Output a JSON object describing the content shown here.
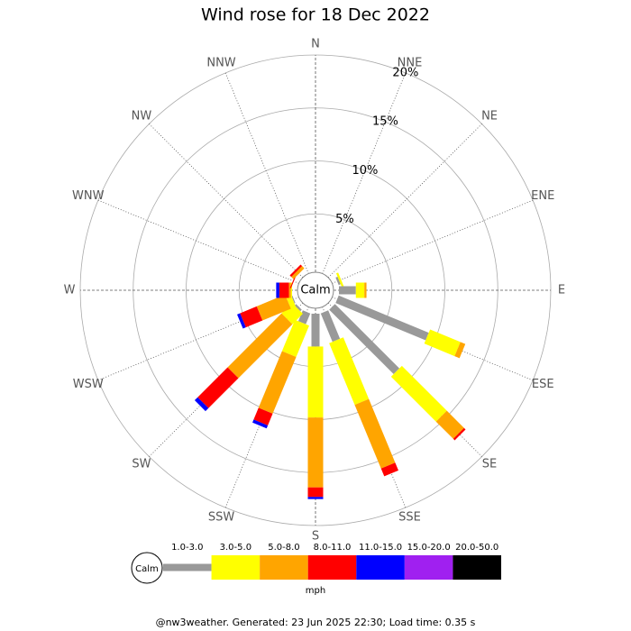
{
  "chart_data": {
    "type": "windrose",
    "title": "Wind rose for 18 Dec 2022",
    "categories": [
      "N",
      "NNE",
      "NE",
      "ENE",
      "E",
      "ESE",
      "SE",
      "SSE",
      "S",
      "SSW",
      "SW",
      "WSW",
      "W",
      "WNW",
      "NW",
      "NNW"
    ],
    "rlim": [
      0,
      20
    ],
    "rticks": [
      {
        "value": 5,
        "label": "5%"
      },
      {
        "value": 10,
        "label": "10%"
      },
      {
        "value": 15,
        "label": "15%"
      },
      {
        "value": 20,
        "label": "20%"
      }
    ],
    "calm_label": "Calm",
    "legend_unit": "mph",
    "series": [
      {
        "name": "1.0-3.0",
        "color": "#999999",
        "values": [
          0,
          0,
          0,
          0.2,
          1.6,
          9.2,
          8.6,
          2.9,
          3.1,
          1.1,
          0.2,
          0.1,
          0,
          0,
          0,
          0
        ]
      },
      {
        "name": "3.0-5.0",
        "color": "#ffff00",
        "values": [
          0,
          0,
          0,
          0.2,
          0.8,
          3.1,
          6.0,
          6.3,
          6.7,
          3.2,
          1.4,
          0.5,
          0.1,
          0,
          0,
          0
        ]
      },
      {
        "name": "5.0-8.0",
        "color": "#ffa500",
        "values": [
          0,
          0,
          0,
          0,
          0.2,
          0.5,
          2.3,
          6.5,
          6.6,
          5.8,
          7.2,
          2.9,
          0.2,
          0,
          0.3,
          0
        ]
      },
      {
        "name": "8.0-11.0",
        "color": "#ff0000",
        "values": [
          0,
          0,
          0,
          0,
          0,
          0,
          0.2,
          0.8,
          0.9,
          1.2,
          4.0,
          1.7,
          0.9,
          0.1,
          0.2,
          0
        ]
      },
      {
        "name": "11.0-15.0",
        "color": "#0000ff",
        "values": [
          0,
          0,
          0,
          0,
          0,
          0,
          0,
          0,
          0.2,
          0.3,
          0.4,
          0.3,
          0.3,
          0,
          0,
          0
        ]
      },
      {
        "name": "15.0-20.0",
        "color": "#a020f0",
        "values": [
          0,
          0,
          0,
          0,
          0,
          0,
          0,
          0,
          0,
          0,
          0,
          0,
          0,
          0,
          0,
          0
        ]
      },
      {
        "name": "20.0-50.0",
        "color": "#000000",
        "values": [
          0,
          0,
          0,
          0,
          0,
          0,
          0,
          0,
          0,
          0,
          0,
          0,
          0,
          0,
          0,
          0
        ]
      }
    ]
  },
  "footer": "@nw3weather. Generated: 23 Jun 2025 22:30; Load time: 0.35 s"
}
